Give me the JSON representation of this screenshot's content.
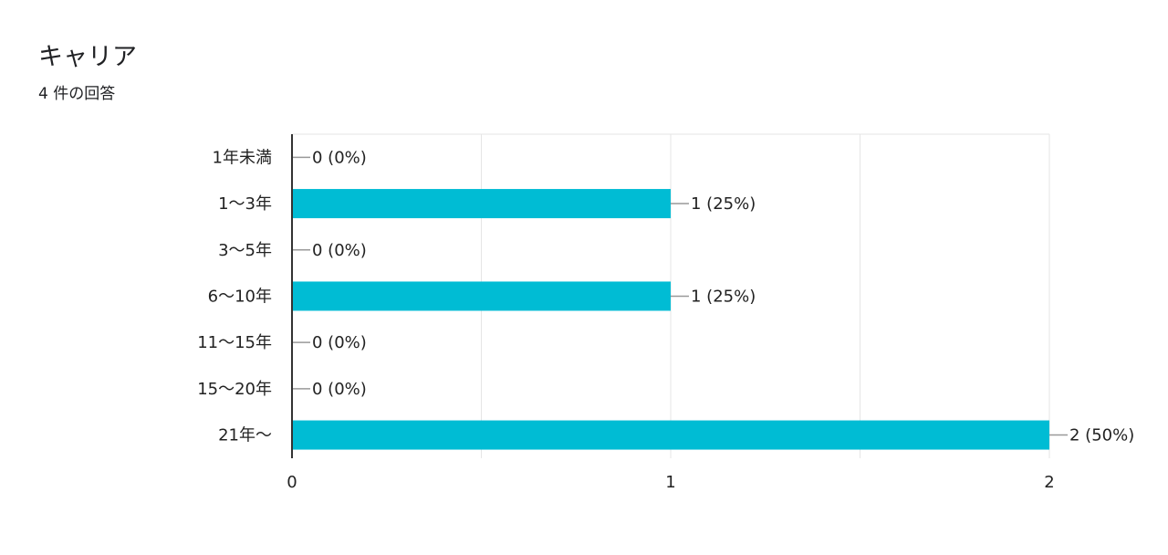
{
  "header": {
    "title": "キャリア",
    "response_count": "4 件の回答"
  },
  "colors": {
    "bar": "#00bcd4",
    "axis": "#333333",
    "grid": "#e6e6e6",
    "leader": "#999999"
  },
  "chart_data": {
    "type": "bar",
    "orientation": "horizontal",
    "categories": [
      "1年未満",
      "1〜3年",
      "3〜5年",
      "6〜10年",
      "11〜15年",
      "15〜20年",
      "21年〜"
    ],
    "values": [
      0,
      1,
      0,
      1,
      0,
      0,
      2
    ],
    "data_labels": [
      "0 (0%)",
      "1 (25%)",
      "0 (0%)",
      "1 (25%)",
      "0 (0%)",
      "0 (0%)",
      "2 (50%)"
    ],
    "xlim": [
      0,
      2
    ],
    "x_ticks": [
      "0",
      "1",
      "2"
    ],
    "grid": true
  }
}
